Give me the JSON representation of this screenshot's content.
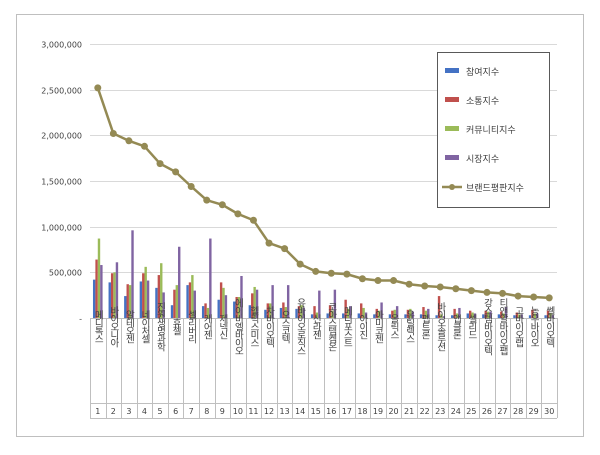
{
  "chart_data": {
    "type": "bar",
    "title": "",
    "xlabel": "",
    "ylabel": "",
    "ylim": [
      0,
      3000000
    ],
    "y_ticks": [
      "-",
      "500,000",
      "1,000,000",
      "1,500,000",
      "2,000,000",
      "2,500,000",
      "3,000,000"
    ],
    "grid": true,
    "legend_position": "top-right",
    "categories": [
      "메디톡스",
      "바이오니아",
      "알테오젠",
      "네이처셀",
      "진원생명과학",
      "휴젤",
      "셀리버리",
      "케어젠",
      "제넥신",
      "에이비엘바이오",
      "헬릭스미스",
      "차바이오텍",
      "오스코텍",
      "유바이오로직스",
      "신라젠",
      "코아스템켐온",
      "메디포스트",
      "아이진",
      "아미코젠",
      "올릭스",
      "유틸렉스",
      "펩트론",
      "바이오솔루션",
      "앱클론",
      "셀리드",
      "강스템바이오텍",
      "티앤알바이오팹",
      "고바이오랩",
      "농우바이오",
      "쎌바이오텍"
    ],
    "category_numbers": [
      "1",
      "2",
      "3",
      "4",
      "5",
      "6",
      "7",
      "8",
      "9",
      "10",
      "11",
      "12",
      "13",
      "14",
      "15",
      "16",
      "17",
      "18",
      "19",
      "20",
      "21",
      "22",
      "23",
      "24",
      "25",
      "26",
      "27",
      "28",
      "29",
      "30"
    ],
    "series": [
      {
        "name": "참여지수",
        "kind": "bar",
        "color": "#4472C4",
        "values": [
          420000,
          390000,
          240000,
          400000,
          330000,
          140000,
          360000,
          130000,
          200000,
          180000,
          140000,
          90000,
          110000,
          100000,
          40000,
          50000,
          50000,
          50000,
          40000,
          40000,
          40000,
          40000,
          30000,
          30000,
          50000,
          40000,
          40000,
          30000,
          30000,
          30000
        ]
      },
      {
        "name": "소통지수",
        "kind": "bar",
        "color": "#C0504D",
        "values": [
          640000,
          490000,
          370000,
          490000,
          470000,
          310000,
          390000,
          160000,
          390000,
          230000,
          270000,
          160000,
          170000,
          130000,
          130000,
          140000,
          200000,
          160000,
          100000,
          80000,
          90000,
          120000,
          240000,
          100000,
          80000,
          80000,
          70000,
          60000,
          90000,
          80000
        ]
      },
      {
        "name": "커뮤니티지수",
        "kind": "bar",
        "color": "#9BBB59",
        "values": [
          870000,
          500000,
          360000,
          560000,
          600000,
          360000,
          470000,
          110000,
          330000,
          230000,
          340000,
          160000,
          120000,
          140000,
          60000,
          80000,
          100000,
          110000,
          80000,
          90000,
          100000,
          80000,
          40000,
          50000,
          60000,
          70000,
          50000,
          40000,
          50000,
          50000
        ]
      },
      {
        "name": "시장지수",
        "kind": "bar",
        "color": "#8064A2",
        "values": [
          580000,
          610000,
          960000,
          410000,
          280000,
          780000,
          300000,
          870000,
          250000,
          460000,
          310000,
          360000,
          360000,
          110000,
          300000,
          310000,
          130000,
          60000,
          170000,
          130000,
          70000,
          100000,
          20000,
          110000,
          50000,
          70000,
          120000,
          40000,
          50000,
          30000
        ]
      },
      {
        "name": "브랜드평판지수",
        "kind": "line",
        "color": "#948A54",
        "values": [
          2520000,
          2020000,
          1940000,
          1880000,
          1690000,
          1600000,
          1440000,
          1290000,
          1240000,
          1140000,
          1070000,
          820000,
          760000,
          590000,
          510000,
          490000,
          480000,
          430000,
          410000,
          410000,
          370000,
          350000,
          340000,
          320000,
          300000,
          280000,
          270000,
          240000,
          230000,
          220000
        ]
      }
    ]
  }
}
